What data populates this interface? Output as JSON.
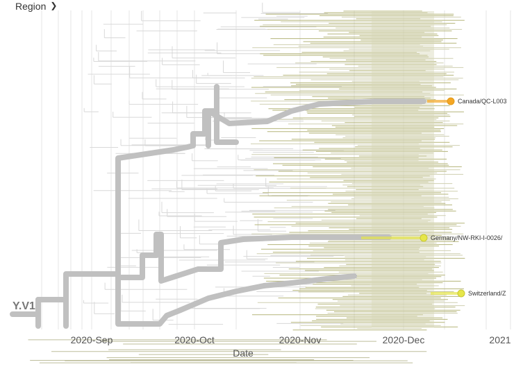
{
  "header": {
    "color_by_label": "Region",
    "chevron_icon": "chevron-down-icon"
  },
  "axis": {
    "title": "Date",
    "ticks": [
      "2020-Sep",
      "2020-Oct",
      "2020-Nov",
      "2020-Dec",
      "2021"
    ]
  },
  "clade_label": "Y.V1",
  "highlighted_tips": [
    {
      "label": "Canada/QC-L003",
      "color": "#f5a623"
    },
    {
      "label": "Germany/NW-RKI-I-0026/",
      "color": "#e6e64a"
    },
    {
      "label": "Switzerland/Z",
      "color": "#e6e64a"
    }
  ],
  "colors": {
    "background_branch": "#c0c0c0",
    "thin_branch": "#d8d8d8",
    "tip_branch_olive": "#b5b57a",
    "gridline": "#e6e6e6"
  }
}
